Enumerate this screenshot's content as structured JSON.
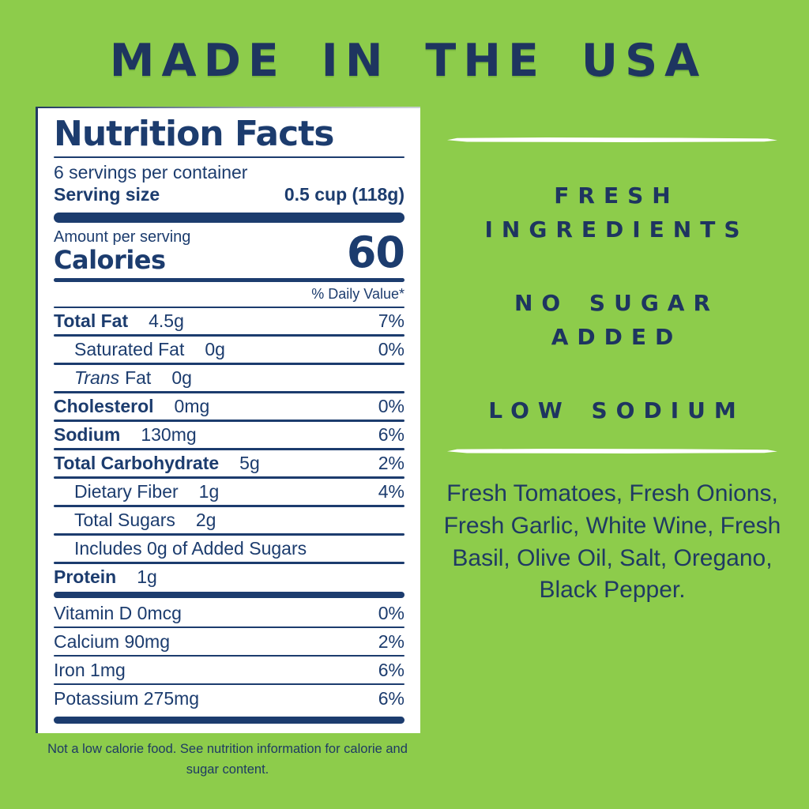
{
  "colors": {
    "background": "#8DCC4B",
    "navy_heading": "#1E3560",
    "navy_label": "#1C3C6E",
    "divider": "#FFFFFF",
    "card_background": "#FFFFFF"
  },
  "title": "MADE IN THE USA",
  "nutrition_label": {
    "title": "Nutrition Facts",
    "servings_per_container": "6 servings per container",
    "serving_size_label": "Serving size",
    "serving_size_value": "0.5 cup (118g)",
    "amount_per_serving": "Amount per serving",
    "calories_label": "Calories",
    "calories_value": "60",
    "daily_value_header": "% Daily Value*",
    "rows": [
      {
        "name": "Total Fat",
        "amount": "4.5g",
        "dv": "7%"
      },
      {
        "name": "Saturated Fat",
        "amount": "0g",
        "dv": "0%"
      },
      {
        "name_italic": "Trans",
        "name_rest": "Fat",
        "amount": "0g",
        "dv": ""
      },
      {
        "name": "Cholesterol",
        "amount": "0mg",
        "dv": "0%"
      },
      {
        "name": "Sodium",
        "amount": "130mg",
        "dv": "6%"
      },
      {
        "name": "Total Carbohydrate",
        "amount": "5g",
        "dv": "2%"
      },
      {
        "name": "Dietary Fiber",
        "amount": "1g",
        "dv": "4%"
      },
      {
        "name": "Total Sugars",
        "amount": "2g",
        "dv": ""
      },
      {
        "name": "Includes 0g of Added Sugars",
        "amount": "",
        "dv": ""
      },
      {
        "name": "Protein",
        "amount": "1g",
        "dv": ""
      }
    ],
    "vitamins": [
      {
        "name": "Vitamin D 0mcg",
        "dv": "0%"
      },
      {
        "name": "Calcium 90mg",
        "dv": "2%"
      },
      {
        "name": "Iron 1mg",
        "dv": "6%"
      },
      {
        "name": "Potassium 275mg",
        "dv": "6%"
      }
    ]
  },
  "footnote_lines": [
    "Not a low calorie food. See nutrition information for calorie and",
    "sugar content."
  ],
  "claims": [
    "FRESH INGREDIENTS",
    "NO SUGAR ADDED",
    "LOW SODIUM"
  ],
  "ingredients": "Fresh Tomatoes, Fresh Onions, Fresh Garlic, White Wine, Fresh Basil, Olive Oil, Salt, Oregano, Black Pepper."
}
